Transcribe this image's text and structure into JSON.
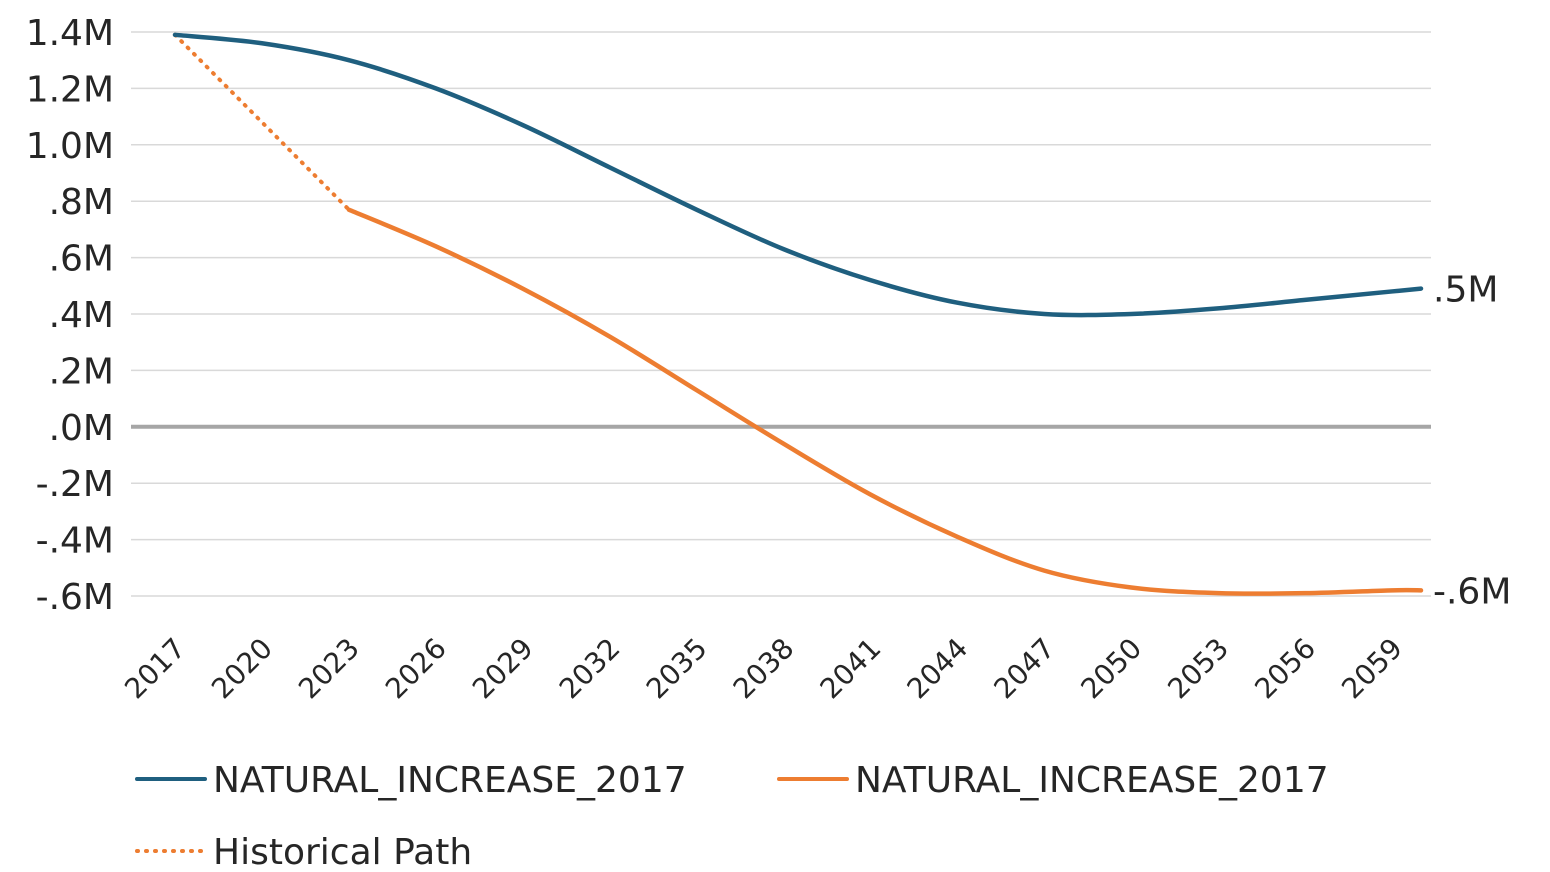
{
  "chart_data": {
    "type": "line",
    "title": "",
    "xlabel": "",
    "ylabel": "",
    "x_ticks": [
      "2017",
      "2020",
      "2023",
      "2026",
      "2029",
      "2032",
      "2035",
      "2038",
      "2041",
      "2044",
      "2047",
      "2050",
      "2053",
      "2056",
      "2059"
    ],
    "y_ticks": [
      "1.4M",
      "1.2M",
      "1.0M",
      ".8M",
      ".6M",
      ".4M",
      ".2M",
      ".0M",
      "-.2M",
      "-.4M",
      "-.6M"
    ],
    "ylim": [
      -0.6,
      1.4
    ],
    "xlim": [
      2017,
      2060
    ],
    "grid": true,
    "legend_position": "bottom",
    "series": [
      {
        "name": "NATURAL_INCREASE_2017",
        "color": "#1F5F7F",
        "style": "solid",
        "x": [
          2017,
          2020,
          2023,
          2026,
          2029,
          2032,
          2035,
          2038,
          2041,
          2044,
          2047,
          2050,
          2053,
          2056,
          2059,
          2060
        ],
        "values": [
          1.39,
          1.36,
          1.3,
          1.2,
          1.07,
          0.92,
          0.77,
          0.63,
          0.52,
          0.44,
          0.4,
          0.4,
          0.42,
          0.45,
          0.48,
          0.49
        ],
        "end_label": ".5M"
      },
      {
        "name": "NATURAL_INCREASE_2017",
        "color": "#ED7D31",
        "style": "solid",
        "x": [
          2023,
          2026,
          2029,
          2032,
          2035,
          2038,
          2041,
          2044,
          2047,
          2050,
          2053,
          2056,
          2059,
          2060
        ],
        "values": [
          0.77,
          0.64,
          0.49,
          0.32,
          0.13,
          -0.06,
          -0.24,
          -0.39,
          -0.51,
          -0.57,
          -0.59,
          -0.59,
          -0.58,
          -0.58
        ],
        "end_label": "-.6M"
      },
      {
        "name": "Historical Path",
        "color": "#ED7D31",
        "style": "dotted",
        "x": [
          2017,
          2023
        ],
        "values": [
          1.39,
          0.77
        ]
      }
    ]
  }
}
